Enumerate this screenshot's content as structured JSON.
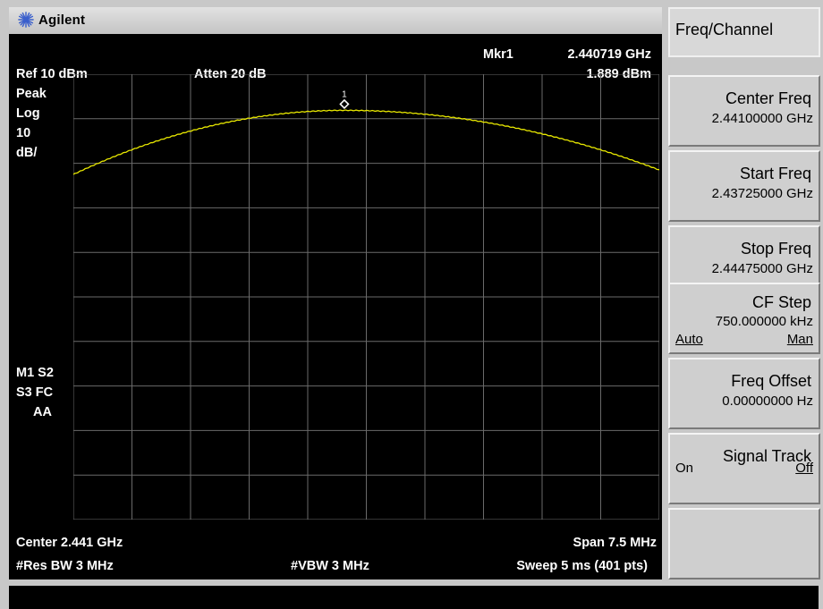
{
  "brand": {
    "name": "Agilent",
    "logo_icon": "agilent-spark-icon",
    "logo_color": "#3a5fcc"
  },
  "display": {
    "marker_readout_label": "Mkr1",
    "marker_freq": "2.440719 GHz",
    "marker_amp": "1.889 dBm",
    "ref_level": "Ref 10 dBm",
    "atten": "Atten 20 dB",
    "detector": "Peak",
    "scale_type": "Log",
    "scale_value": "10",
    "scale_unit": "dB/",
    "marker_label": "1",
    "status": {
      "line1": "M1  S2",
      "line2": "S3  FC",
      "line3": "AA"
    },
    "center": "Center 2.441 GHz",
    "span": "Span 7.5 MHz",
    "res_bw": "#Res BW 3 MHz",
    "vbw": "#VBW 3 MHz",
    "sweep": "Sweep 5 ms (401 pts)",
    "trace_color": "#e8e800",
    "grid_color": "#6a6a6a"
  },
  "trace": {
    "ref_dbm": 10,
    "db_per_div": 10,
    "divisions": 10,
    "center_ghz": 2.441,
    "span_mhz": 7.5,
    "start_ghz": 2.43725,
    "stop_ghz": 2.44475,
    "start_dbm": -12.5,
    "peak_dbm": 1.889,
    "peak_ghz": 2.440719,
    "end_dbm": -11.5
  },
  "softkeys": {
    "title": "Freq/Channel",
    "center_freq": {
      "label": "Center Freq",
      "value": "2.44100000 GHz"
    },
    "start_freq": {
      "label": "Start Freq",
      "value": "2.43725000 GHz"
    },
    "stop_freq": {
      "label": "Stop Freq",
      "value": "2.44475000 GHz"
    },
    "cf_step": {
      "label": "CF Step",
      "value": "750.000000 kHz",
      "opt_left": "Auto",
      "opt_right": "Man"
    },
    "freq_offset": {
      "label": "Freq Offset",
      "value": "0.00000000  Hz"
    },
    "signal_track": {
      "label": "Signal Track",
      "opt_left": "On",
      "opt_right": "Off"
    }
  }
}
